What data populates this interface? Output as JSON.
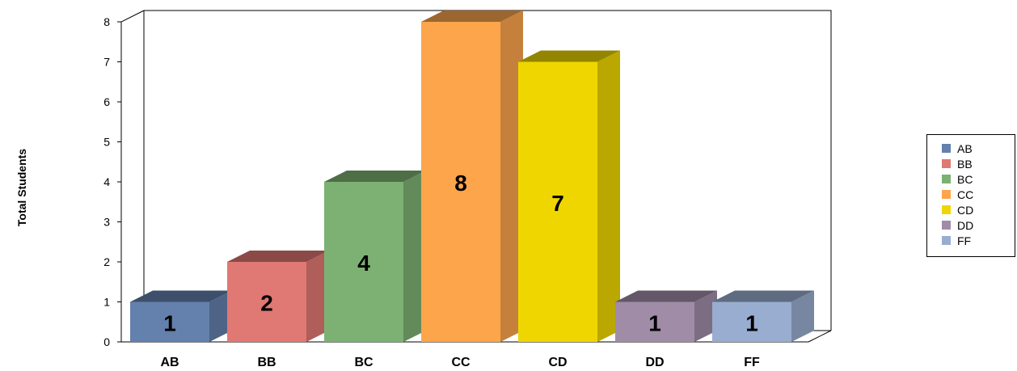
{
  "chart_data": {
    "type": "bar",
    "title": "",
    "xlabel": "",
    "ylabel": "Total Students",
    "categories": [
      "AB",
      "BB",
      "BC",
      "CC",
      "CD",
      "DD",
      "FF"
    ],
    "values": [
      1,
      2,
      4,
      8,
      7,
      1,
      1
    ],
    "data_labels": [
      "1",
      "2",
      "4",
      "8",
      "7",
      "1",
      "1"
    ],
    "ylim": [
      0,
      8
    ],
    "yticks": [
      "0",
      "1",
      "2",
      "3",
      "4",
      "5",
      "6",
      "7",
      "8"
    ],
    "grid": false,
    "legend_position": "right",
    "colors": [
      "#6480ac",
      "#e07873",
      "#7db173",
      "#fda54b",
      "#efd600",
      "#a08ca7",
      "#98add0"
    ],
    "style": "3d-bar"
  }
}
